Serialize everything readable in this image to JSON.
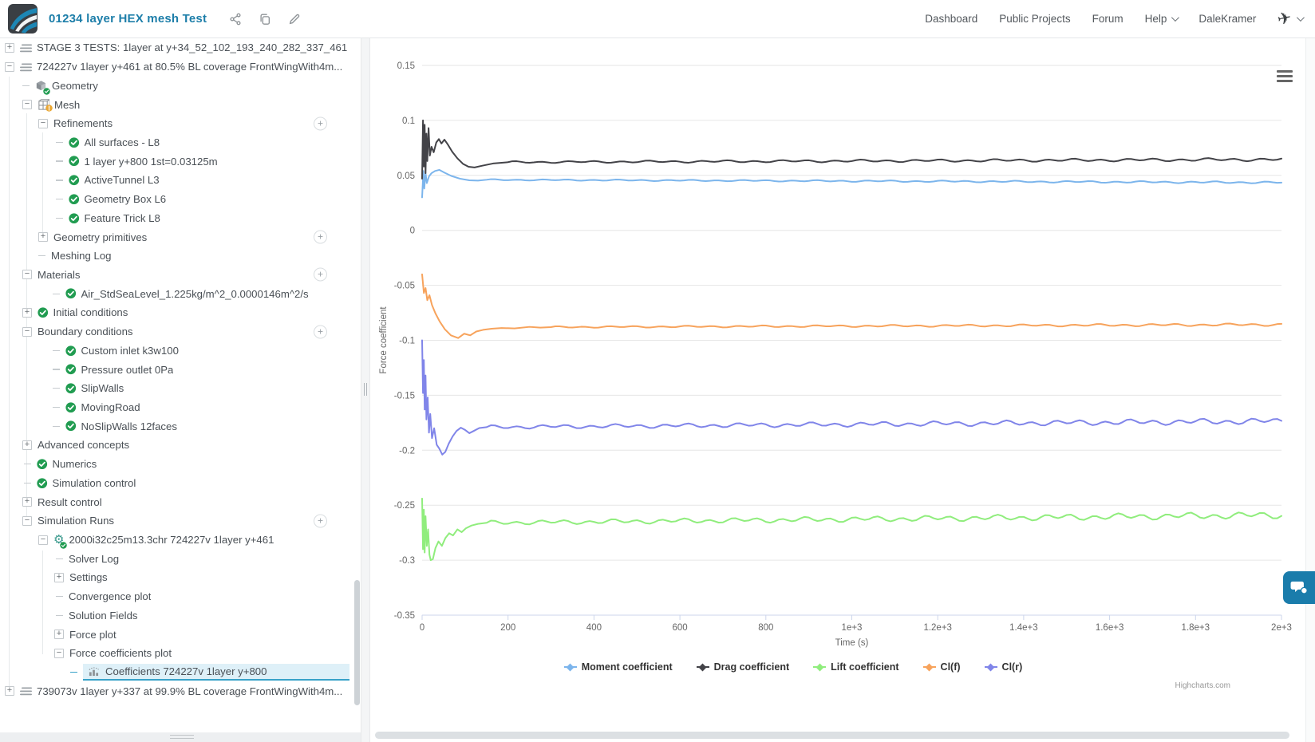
{
  "header": {
    "title": "01234 layer HEX mesh Test",
    "title_icons": [
      "share-icon",
      "copy-icon",
      "edit-icon"
    ],
    "nav": [
      {
        "label": "Dashboard",
        "caret": false
      },
      {
        "label": "Public Projects",
        "caret": false
      },
      {
        "label": "Forum",
        "caret": false
      },
      {
        "label": "Help",
        "caret": true
      },
      {
        "label": "DaleKramer",
        "caret": false
      }
    ]
  },
  "tree": {
    "rows": [
      {
        "indent": 6,
        "ctrl": "plus",
        "icon": "list",
        "label": "STAGE 3 TESTS: 1layer at y+34_52_102_193_240_282_337_461",
        "add": false,
        "selected": false
      },
      {
        "indent": 6,
        "ctrl": "minus",
        "icon": "list",
        "label": "724227v 1layer y+461 at 80.5% BL coverage FrontWingWith4m...",
        "add": false,
        "selected": false
      },
      {
        "indent": 28,
        "ctrl": "dash",
        "icon": "geometry",
        "label": "Geometry",
        "add": false,
        "selected": false
      },
      {
        "indent": 28,
        "ctrl": "minus",
        "icon": "mesh",
        "label": "Mesh",
        "add": false,
        "selected": false
      },
      {
        "indent": 48,
        "ctrl": "minus",
        "icon": null,
        "label": "Refinements",
        "add": true,
        "selected": false
      },
      {
        "indent": 70,
        "ctrl": "dash",
        "icon": "check",
        "label": "All surfaces - L8",
        "add": false,
        "selected": false
      },
      {
        "indent": 70,
        "ctrl": "dash",
        "icon": "check",
        "label": "1 layer y+800 1st=0.03125m",
        "add": false,
        "selected": false
      },
      {
        "indent": 70,
        "ctrl": "dash",
        "icon": "check",
        "label": "ActiveTunnel L3",
        "add": false,
        "selected": false
      },
      {
        "indent": 70,
        "ctrl": "dash",
        "icon": "check",
        "label": "Geometry Box L6",
        "add": false,
        "selected": false
      },
      {
        "indent": 70,
        "ctrl": "dash",
        "icon": "check",
        "label": "Feature Trick L8",
        "add": false,
        "selected": false
      },
      {
        "indent": 48,
        "ctrl": "plus",
        "icon": null,
        "label": "Geometry primitives",
        "add": true,
        "selected": false
      },
      {
        "indent": 48,
        "ctrl": "dash",
        "icon": null,
        "label": "Meshing Log",
        "add": false,
        "selected": false
      },
      {
        "indent": 28,
        "ctrl": "minus",
        "icon": null,
        "label": "Materials",
        "add": true,
        "selected": false
      },
      {
        "indent": 66,
        "ctrl": "dash",
        "icon": "check",
        "label": "Air_StdSeaLevel_1.225kg/m^2_0.0000146m^2/s",
        "add": false,
        "selected": false
      },
      {
        "indent": 28,
        "ctrl": "plus",
        "icon": "check",
        "label": "Initial conditions",
        "add": false,
        "selected": false
      },
      {
        "indent": 28,
        "ctrl": "minus",
        "icon": null,
        "label": "Boundary conditions",
        "add": true,
        "selected": false
      },
      {
        "indent": 66,
        "ctrl": "dash",
        "icon": "check",
        "label": "Custom inlet k3w100",
        "add": false,
        "selected": false
      },
      {
        "indent": 66,
        "ctrl": "dash",
        "icon": "check",
        "label": "Pressure outlet 0Pa",
        "add": false,
        "selected": false
      },
      {
        "indent": 66,
        "ctrl": "dash",
        "icon": "check",
        "label": "SlipWalls",
        "add": false,
        "selected": false
      },
      {
        "indent": 66,
        "ctrl": "dash",
        "icon": "check",
        "label": "MovingRoad",
        "add": false,
        "selected": false
      },
      {
        "indent": 66,
        "ctrl": "dash",
        "icon": "check",
        "label": "NoSlipWalls 12faces",
        "add": false,
        "selected": false
      },
      {
        "indent": 28,
        "ctrl": "plus",
        "icon": null,
        "label": "Advanced concepts",
        "add": false,
        "selected": false
      },
      {
        "indent": 30,
        "ctrl": "dash",
        "icon": "check",
        "label": "Numerics",
        "add": false,
        "selected": false
      },
      {
        "indent": 30,
        "ctrl": "dash",
        "icon": "check",
        "label": "Simulation control",
        "add": false,
        "selected": false
      },
      {
        "indent": 28,
        "ctrl": "plus",
        "icon": null,
        "label": "Result control",
        "add": false,
        "selected": false
      },
      {
        "indent": 28,
        "ctrl": "minus",
        "icon": null,
        "label": "Simulation Runs",
        "add": true,
        "selected": false
      },
      {
        "indent": 48,
        "ctrl": "minus",
        "icon": "gear",
        "label": "2000i32c25m13.3chr 724227v 1layer y+461",
        "add": false,
        "selected": false
      },
      {
        "indent": 70,
        "ctrl": "dash",
        "icon": null,
        "label": "Solver Log",
        "add": false,
        "selected": false
      },
      {
        "indent": 68,
        "ctrl": "plus",
        "icon": null,
        "label": "Settings",
        "add": false,
        "selected": false
      },
      {
        "indent": 70,
        "ctrl": "dash",
        "icon": null,
        "label": "Convergence plot",
        "add": false,
        "selected": false
      },
      {
        "indent": 70,
        "ctrl": "dash",
        "icon": null,
        "label": "Solution Fields",
        "add": false,
        "selected": false
      },
      {
        "indent": 68,
        "ctrl": "plus",
        "icon": null,
        "label": "Force plot",
        "add": false,
        "selected": false
      },
      {
        "indent": 68,
        "ctrl": "minus",
        "icon": null,
        "label": "Force coefficients plot",
        "add": false,
        "selected": false
      },
      {
        "indent": 88,
        "ctrl": "dash",
        "icon": "chart",
        "label": "Coefficients 724227v 1layer y+800",
        "add": false,
        "selected": true
      },
      {
        "indent": 6,
        "ctrl": "plus",
        "icon": "list",
        "label": "739073v 1layer y+337 at 99.9% BL coverage FrontWingWith4m...",
        "add": false,
        "selected": false
      }
    ]
  },
  "chart_data": {
    "type": "line",
    "title": "",
    "xlabel": "Time (s)",
    "ylabel": "Force coefficient",
    "xlim": [
      0,
      2000
    ],
    "ylim": [
      -0.35,
      0.15
    ],
    "grid": true,
    "legend_position": "bottom",
    "credit": "Highcharts.com",
    "x_ticks": [
      0,
      200,
      400,
      600,
      800,
      1000,
      1200,
      1400,
      1600,
      1800,
      2000
    ],
    "x_tick_labels": [
      "0",
      "200",
      "400",
      "600",
      "800",
      "1e+3",
      "1.2e+3",
      "1.4e+3",
      "1.6e+3",
      "1.8e+3",
      "2e+3"
    ],
    "y_ticks": [
      0.15,
      0.1,
      0.05,
      0,
      -0.05,
      -0.1,
      -0.15,
      -0.2,
      -0.25,
      -0.3,
      -0.35
    ],
    "y_tick_labels": [
      "0.15",
      "0.1",
      "0.05",
      "0",
      "-0.05",
      "-0.1",
      "-0.15",
      "-0.2",
      "-0.25",
      "-0.3",
      "-0.35"
    ],
    "series": [
      {
        "name": "Moment coefficient",
        "color": "#7cb5ec",
        "points": [
          [
            0,
            0.03
          ],
          [
            3,
            0.054
          ],
          [
            5,
            0.038
          ],
          [
            8,
            0.052
          ],
          [
            11,
            0.043
          ],
          [
            16,
            0.049
          ],
          [
            22,
            0.052
          ],
          [
            30,
            0.054
          ],
          [
            40,
            0.055
          ],
          [
            52,
            0.0525
          ],
          [
            68,
            0.0495
          ],
          [
            88,
            0.047
          ],
          [
            110,
            0.0455
          ],
          [
            130,
            0.0452
          ],
          [
            150,
            0.046
          ]
        ],
        "steady": {
          "from": 150,
          "to": 2000,
          "start": 0.046,
          "end": 0.0435,
          "amplitude": 0.0007,
          "period": 58
        }
      },
      {
        "name": "Drag coefficient",
        "color": "#434348",
        "points": [
          [
            0,
            0.047
          ],
          [
            2,
            0.1
          ],
          [
            4,
            0.058
          ],
          [
            6,
            0.096
          ],
          [
            8,
            0.052
          ],
          [
            10,
            0.088
          ],
          [
            12,
            0.063
          ],
          [
            15,
            0.093
          ],
          [
            18,
            0.068
          ],
          [
            22,
            0.076
          ],
          [
            27,
            0.071
          ],
          [
            33,
            0.08
          ],
          [
            39,
            0.083
          ],
          [
            45,
            0.079
          ],
          [
            52,
            0.0825
          ],
          [
            60,
            0.078
          ],
          [
            70,
            0.0715
          ],
          [
            82,
            0.0655
          ],
          [
            95,
            0.0605
          ],
          [
            108,
            0.0578
          ],
          [
            122,
            0.0572
          ],
          [
            140,
            0.0588
          ],
          [
            165,
            0.0608
          ],
          [
            185,
            0.0615
          ],
          [
            200,
            0.062
          ]
        ],
        "steady": {
          "from": 200,
          "to": 2000,
          "start": 0.062,
          "end": 0.0645,
          "amplitude": 0.0011,
          "period": 62
        }
      },
      {
        "name": "Lift coefficient",
        "color": "#90ed7d",
        "points": [
          [
            0,
            -0.244
          ],
          [
            2,
            -0.29
          ],
          [
            4,
            -0.254
          ],
          [
            6,
            -0.293
          ],
          [
            8,
            -0.26
          ],
          [
            11,
            -0.287
          ],
          [
            14,
            -0.272
          ],
          [
            17,
            -0.295
          ],
          [
            20,
            -0.3
          ],
          [
            25,
            -0.299
          ],
          [
            31,
            -0.289
          ],
          [
            38,
            -0.283
          ],
          [
            46,
            -0.287
          ],
          [
            54,
            -0.28
          ],
          [
            63,
            -0.2755
          ],
          [
            72,
            -0.2775
          ],
          [
            82,
            -0.272
          ],
          [
            92,
            -0.2745
          ],
          [
            102,
            -0.271
          ],
          [
            115,
            -0.2685
          ],
          [
            130,
            -0.267
          ],
          [
            150,
            -0.266
          ]
        ],
        "steady": {
          "from": 150,
          "to": 2000,
          "start": -0.266,
          "end": -0.259,
          "amplitude": 0.0024,
          "period": 56
        }
      },
      {
        "name": "Cl(f)",
        "color": "#f7a35c",
        "points": [
          [
            0,
            -0.04
          ],
          [
            4,
            -0.057
          ],
          [
            8,
            -0.0525
          ],
          [
            12,
            -0.0635
          ],
          [
            17,
            -0.059
          ],
          [
            23,
            -0.068
          ],
          [
            31,
            -0.0755
          ],
          [
            41,
            -0.083
          ],
          [
            53,
            -0.09
          ],
          [
            67,
            -0.0955
          ],
          [
            84,
            -0.098
          ],
          [
            98,
            -0.094
          ],
          [
            112,
            -0.0955
          ],
          [
            126,
            -0.092
          ],
          [
            142,
            -0.0905
          ],
          [
            162,
            -0.0895
          ],
          [
            185,
            -0.0888
          ],
          [
            215,
            -0.0892
          ],
          [
            250,
            -0.0878
          ],
          [
            275,
            -0.0885
          ],
          [
            300,
            -0.088
          ]
        ],
        "steady": {
          "from": 300,
          "to": 2000,
          "start": -0.088,
          "end": -0.0857,
          "amplitude": 0.0009,
          "period": 60
        }
      },
      {
        "name": "Cl(r)",
        "color": "#8085e9",
        "points": [
          [
            0,
            -0.1
          ],
          [
            2,
            -0.148
          ],
          [
            4,
            -0.118
          ],
          [
            6,
            -0.163
          ],
          [
            8,
            -0.132
          ],
          [
            10,
            -0.172
          ],
          [
            13,
            -0.152
          ],
          [
            16,
            -0.184
          ],
          [
            19,
            -0.167
          ],
          [
            23,
            -0.189
          ],
          [
            28,
            -0.18
          ],
          [
            34,
            -0.195
          ],
          [
            40,
            -0.1985
          ],
          [
            47,
            -0.204
          ],
          [
            54,
            -0.2015
          ],
          [
            62,
            -0.194
          ],
          [
            71,
            -0.1875
          ],
          [
            80,
            -0.1825
          ],
          [
            90,
            -0.1795
          ],
          [
            100,
            -0.1815
          ],
          [
            110,
            -0.1845
          ],
          [
            120,
            -0.1825
          ],
          [
            133,
            -0.1798
          ],
          [
            150,
            -0.179
          ]
        ],
        "steady": {
          "from": 150,
          "to": 2000,
          "start": -0.179,
          "end": -0.1735,
          "amplitude": 0.0021,
          "period": 57
        }
      }
    ]
  },
  "colors": {
    "accent_teal": "#1d7ea9",
    "selected_bg": "#def0f8",
    "selected_border": "#38a2c8",
    "check_green": "#219c51",
    "warn_yellow": "#eaa734",
    "gridline": "#e6e6e6",
    "axis_line": "#ccd6eb",
    "chat_button": "#1a7cab"
  }
}
